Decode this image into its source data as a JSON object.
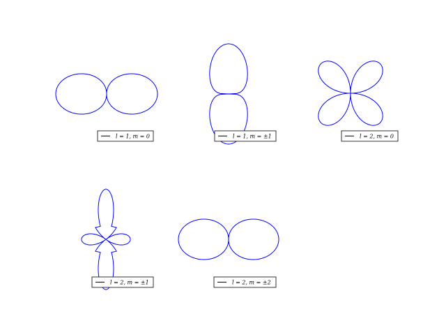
{
  "figure": {
    "background": "#ffffff",
    "curve_color": "#0000ff",
    "legend_line_color": "#000000"
  },
  "chart_data": [
    {
      "type": "polar-line",
      "description_source": "spherical harmonic lobe |Y(l,m)|",
      "l": 1,
      "m": 0,
      "r_formula": "abs(cos(theta))",
      "theta_zero": "horizontal",
      "samples": 200,
      "legend": [
        {
          "label": "l = 1, m = 0",
          "placement": "lower-right"
        }
      ]
    },
    {
      "type": "polar-line",
      "l": 1,
      "m": "±1",
      "r_formula": "abs(sin(theta))",
      "theta_zero": "horizontal",
      "samples": 200,
      "legend": [
        {
          "label": "l = 1, m = ±1",
          "placement": "lower-right"
        }
      ]
    },
    {
      "type": "polar-line",
      "l": 2,
      "m": 0,
      "r_formula": "abs(sin(2*theta))",
      "theta_zero": "horizontal",
      "samples": 400,
      "legend": [
        {
          "label": "l = 2, m = 0",
          "placement": "lower-right"
        }
      ]
    },
    {
      "type": "polar-line",
      "l": 2,
      "m": "±1",
      "r_formula": "abs(3*sin(theta)^2 - 1)",
      "theta_zero": "horizontal",
      "samples": 400,
      "legend": [
        {
          "label": "l = 2, m = ±1",
          "placement": "lower-right"
        }
      ]
    },
    {
      "type": "polar-line",
      "l": 2,
      "m": "±2",
      "r_formula": "abs(cos(theta))",
      "theta_zero": "horizontal",
      "samples": 200,
      "legend": [
        {
          "label": "l = 2, m = ±2",
          "placement": "lower-right"
        }
      ]
    }
  ]
}
